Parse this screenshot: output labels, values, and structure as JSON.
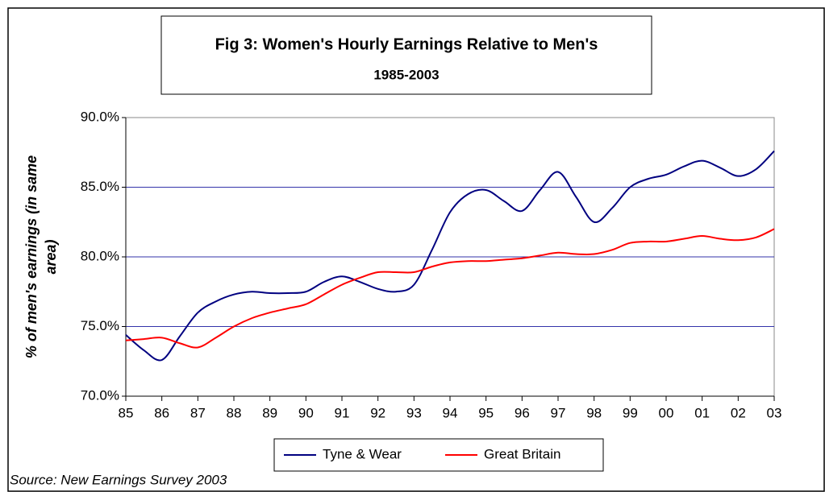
{
  "chart_data": {
    "type": "line",
    "title": "Fig 3: Women's Hourly Earnings Relative to Men's",
    "subtitle": "1985-2003",
    "ylabel": [
      "% of men's earnings (in same",
      "area)"
    ],
    "source": "Source: New Earnings Survey 2003",
    "x": [
      1985,
      1985.5,
      1986,
      1986.5,
      1987,
      1987.5,
      1988,
      1988.5,
      1989,
      1989.5,
      1990,
      1990.5,
      1991,
      1991.5,
      1992,
      1992.5,
      1993,
      1993.5,
      1994,
      1994.5,
      1995,
      1995.5,
      1996,
      1996.5,
      1997,
      1997.5,
      1998,
      1998.5,
      1999,
      1999.5,
      2000,
      2000.5,
      2001,
      2001.5,
      2002,
      2002.5,
      2003
    ],
    "series": [
      {
        "name": "Tyne & Wear",
        "color": "#000080",
        "values": [
          74.4,
          73.3,
          72.6,
          74.3,
          76.0,
          76.8,
          77.3,
          77.5,
          77.4,
          77.4,
          77.5,
          78.2,
          78.6,
          78.2,
          77.7,
          77.5,
          78.0,
          80.5,
          83.2,
          84.5,
          84.8,
          84.0,
          83.3,
          84.8,
          86.1,
          84.3,
          82.5,
          83.5,
          85.0,
          85.6,
          85.9,
          86.5,
          86.9,
          86.4,
          85.8,
          86.3,
          87.6
        ]
      },
      {
        "name": "Great Britain",
        "color": "#ff0000",
        "values": [
          74.0,
          74.1,
          74.2,
          73.8,
          73.5,
          74.2,
          75.0,
          75.6,
          76.0,
          76.3,
          76.6,
          77.3,
          78.0,
          78.5,
          78.9,
          78.9,
          78.9,
          79.3,
          79.6,
          79.7,
          79.7,
          79.8,
          79.9,
          80.1,
          80.3,
          80.2,
          80.2,
          80.5,
          81.0,
          81.1,
          81.1,
          81.3,
          81.5,
          81.3,
          81.2,
          81.4,
          82.0
        ]
      }
    ],
    "xlim": [
      1985,
      2003
    ],
    "xticks": [
      {
        "value": 1985,
        "label": "85"
      },
      {
        "value": 1986,
        "label": "86"
      },
      {
        "value": 1987,
        "label": "87"
      },
      {
        "value": 1988,
        "label": "88"
      },
      {
        "value": 1989,
        "label": "89"
      },
      {
        "value": 1990,
        "label": "90"
      },
      {
        "value": 1991,
        "label": "91"
      },
      {
        "value": 1992,
        "label": "92"
      },
      {
        "value": 1993,
        "label": "93"
      },
      {
        "value": 1994,
        "label": "94"
      },
      {
        "value": 1995,
        "label": "95"
      },
      {
        "value": 1996,
        "label": "96"
      },
      {
        "value": 1997,
        "label": "97"
      },
      {
        "value": 1998,
        "label": "98"
      },
      {
        "value": 1999,
        "label": "99"
      },
      {
        "value": 2000,
        "label": "00"
      },
      {
        "value": 2001,
        "label": "01"
      },
      {
        "value": 2002,
        "label": "02"
      },
      {
        "value": 2003,
        "label": "03"
      }
    ],
    "ylim": [
      70,
      90
    ],
    "yticks": [
      {
        "value": 70,
        "label": "70.0%"
      },
      {
        "value": 75,
        "label": "75.0%"
      },
      {
        "value": 80,
        "label": "80.0%"
      },
      {
        "value": 85,
        "label": "85.0%"
      },
      {
        "value": 90,
        "label": "90.0%"
      }
    ],
    "grid": true,
    "grid_color": "#3333aa",
    "legend": "bottom"
  }
}
